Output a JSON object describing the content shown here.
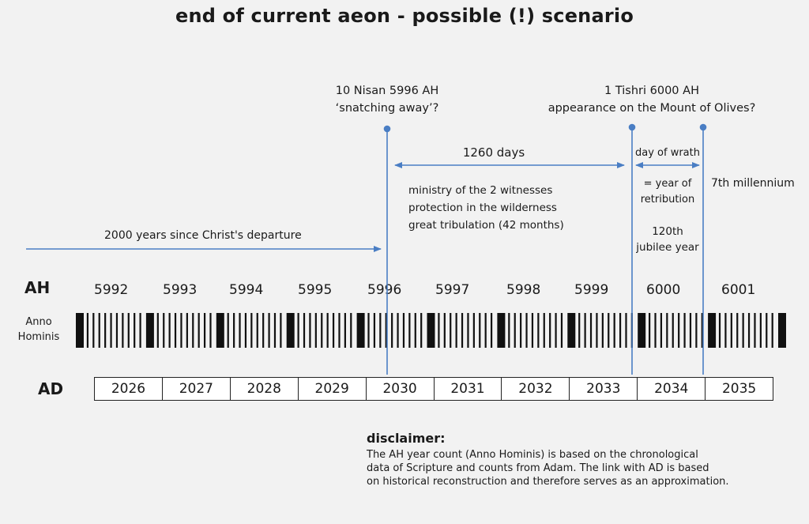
{
  "title": "end of current aeon - possible (!) scenario",
  "events": {
    "snatching": {
      "line1": "10 Nisan 5996 AH",
      "line2": "‘snatching away’?"
    },
    "appearance": {
      "line1": "1 Tishri 6000 AH",
      "line2": "appearance on the Mount of Olives?"
    }
  },
  "periods": {
    "days": "1260 days",
    "wrath": "day of wrath",
    "millennium": "7th millennium",
    "christ": "2000 years since Christ's departure",
    "ministry": [
      "ministry of the 2 witnesses",
      "protection in the wilderness",
      "great tribulation (42 months)"
    ],
    "retribution": [
      "= year of",
      "retribution"
    ],
    "jubilee": [
      "120th",
      "jubilee year"
    ]
  },
  "ah": {
    "label": "AH",
    "sublabel": [
      "Anno",
      "Hominis"
    ],
    "years": [
      "5992",
      "5993",
      "5994",
      "5995",
      "5996",
      "5997",
      "5998",
      "5999",
      "6000",
      "6001"
    ]
  },
  "ad": {
    "label": "AD",
    "years": [
      "2026",
      "2027",
      "2028",
      "2029",
      "2030",
      "2031",
      "2032",
      "2033",
      "2034",
      "2035"
    ]
  },
  "disclaimer": {
    "title": "disclaimer:",
    "lines": [
      "The AH year count (Anno Hominis) is based on the chronological",
      "data of Scripture and counts from Adam. The link with AD is based",
      "on historical reconstruction and therefore serves as an approximation."
    ]
  },
  "colors": {
    "line": "#4a7ec4",
    "bar": "#111111",
    "text": "#1a1a1a"
  }
}
